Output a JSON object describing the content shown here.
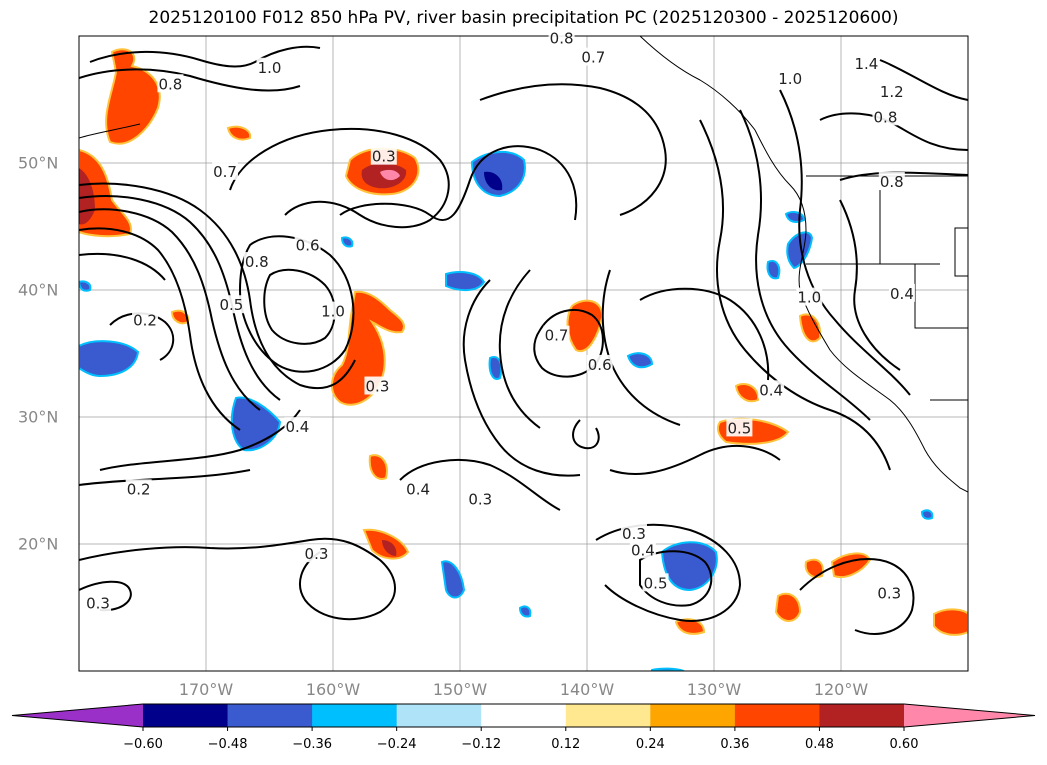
{
  "title": "2025120100 F012 850 hPa PV, river basin precipitation PC (2025120300 - 2025120600)",
  "map": {
    "lat_ticks": [
      {
        "lat": 50,
        "label": "50°N"
      },
      {
        "lat": 40,
        "label": "40°N"
      },
      {
        "lat": 30,
        "label": "30°N"
      },
      {
        "lat": 20,
        "label": "20°N"
      }
    ],
    "lon_ticks": [
      {
        "lon": -170,
        "label": "170°W"
      },
      {
        "lon": -160,
        "label": "160°W"
      },
      {
        "lon": -150,
        "label": "150°W"
      },
      {
        "lon": -140,
        "label": "140°W"
      },
      {
        "lon": -130,
        "label": "130°W"
      },
      {
        "lon": -120,
        "label": "120°W"
      }
    ],
    "contour_labels": [
      {
        "text": "1.0",
        "lon": -165,
        "lat": 57.5
      },
      {
        "text": "0.8",
        "lon": -172.8,
        "lat": 56.2
      },
      {
        "text": "0.8",
        "lon": -142,
        "lat": 59.8
      },
      {
        "text": "0.7",
        "lon": -139.5,
        "lat": 58.3
      },
      {
        "text": "1.0",
        "lon": -124,
        "lat": 56.6
      },
      {
        "text": "1.4",
        "lon": -118,
        "lat": 57.8
      },
      {
        "text": "1.2",
        "lon": -116,
        "lat": 55.6
      },
      {
        "text": "0.8",
        "lon": -116.5,
        "lat": 53.6
      },
      {
        "text": "0.8",
        "lon": -116,
        "lat": 48.5
      },
      {
        "text": "0.3",
        "lon": -156,
        "lat": 50.5
      },
      {
        "text": "0.7",
        "lon": -168.5,
        "lat": 49.3
      },
      {
        "text": "0.6",
        "lon": -162,
        "lat": 43.5
      },
      {
        "text": "0.8",
        "lon": -166,
        "lat": 42.2
      },
      {
        "text": "0.5",
        "lon": -168,
        "lat": 38.8
      },
      {
        "text": "1.0",
        "lon": -160,
        "lat": 38.3
      },
      {
        "text": "0.2",
        "lon": -174.8,
        "lat": 37.6
      },
      {
        "text": "0.7",
        "lon": -142.4,
        "lat": 36.4
      },
      {
        "text": "0.6",
        "lon": -139,
        "lat": 34.1
      },
      {
        "text": "0.3",
        "lon": -156.5,
        "lat": 32.4
      },
      {
        "text": "0.4",
        "lon": -125.5,
        "lat": 32.1
      },
      {
        "text": "0.4",
        "lon": -162.8,
        "lat": 29.2
      },
      {
        "text": "0.5",
        "lon": -128,
        "lat": 29.1
      },
      {
        "text": "0.4",
        "lon": -115.2,
        "lat": 39.7
      },
      {
        "text": "1.0",
        "lon": -122.5,
        "lat": 39.4
      },
      {
        "text": "0.2",
        "lon": -175.3,
        "lat": 24.3
      },
      {
        "text": "0.4",
        "lon": -153.3,
        "lat": 24.3
      },
      {
        "text": "0.3",
        "lon": -148.4,
        "lat": 23.5
      },
      {
        "text": "0.3",
        "lon": -161.3,
        "lat": 19.2
      },
      {
        "text": "0.3",
        "lon": -136.3,
        "lat": 20.8
      },
      {
        "text": "0.4",
        "lon": -135.6,
        "lat": 19.5
      },
      {
        "text": "0.5",
        "lon": -134.6,
        "lat": 16.9
      },
      {
        "text": "0.3",
        "lon": -116.2,
        "lat": 16.1
      },
      {
        "text": "0.3",
        "lon": -178.5,
        "lat": 15.3
      }
    ]
  },
  "colorbar": {
    "colors": [
      "#9b30c8",
      "#00008b",
      "#3a5acf",
      "#00bfff",
      "#aee3f8",
      "#ffffff",
      "#ffe890",
      "#ffa500",
      "#ff4500",
      "#b22222",
      "#ff88aa"
    ],
    "ticks": [
      "−0.60",
      "−0.48",
      "−0.36",
      "−0.24",
      "−0.12",
      "0.12",
      "0.24",
      "0.36",
      "0.48",
      "0.60"
    ]
  }
}
